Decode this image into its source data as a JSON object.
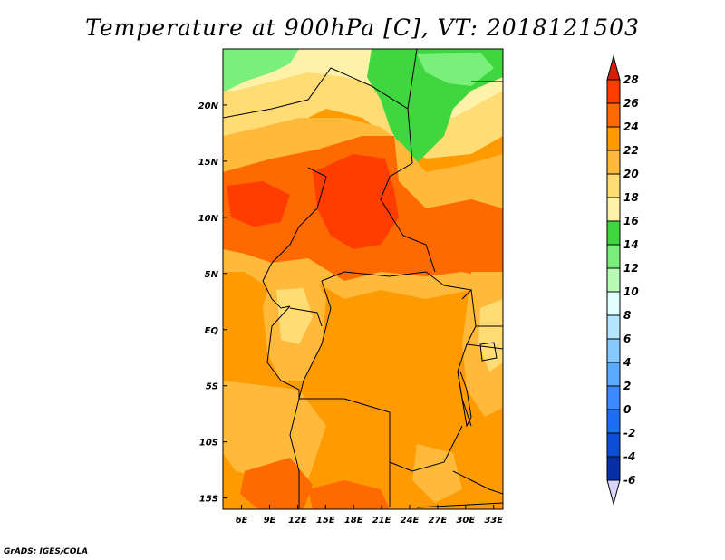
{
  "title": "Temperature at 900hPa [C], VT: 2018121503",
  "credit": "GrADS: IGES/COLA",
  "axes": {
    "lat_labels": [
      "20N",
      "15N",
      "10N",
      "5N",
      "EQ",
      "5S",
      "10S",
      "15S"
    ],
    "lat_values": [
      20,
      15,
      10,
      5,
      0,
      -5,
      -10,
      -15
    ],
    "lon_labels": [
      "6E",
      "9E",
      "12E",
      "15E",
      "18E",
      "21E",
      "24E",
      "27E",
      "30E",
      "33E"
    ],
    "lon_values": [
      6,
      9,
      12,
      15,
      18,
      21,
      24,
      27,
      30,
      33
    ],
    "lon_range": [
      4,
      34
    ],
    "lat_range": [
      -16,
      25
    ]
  },
  "colorbar": {
    "labels": [
      "28",
      "26",
      "24",
      "22",
      "20",
      "18",
      "16",
      "14",
      "12",
      "10",
      "8",
      "6",
      "4",
      "2",
      "0",
      "-2",
      "-4",
      "-6"
    ],
    "colors": [
      "#ff3d00",
      "#ff6a00",
      "#ff9a00",
      "#ffb93b",
      "#ffdc74",
      "#fff2a8",
      "#3fd63f",
      "#7af07a",
      "#b7fbb7",
      "#e2ffff",
      "#b4e6ff",
      "#86c9ff",
      "#5aaaff",
      "#3b8aff",
      "#1e6ef5",
      "#0c4fd5",
      "#062fa8",
      "#0a1470"
    ],
    "top_arrow_color": "#d81e05",
    "bottom_arrow_color": "#d8d4ff"
  },
  "field_colors": {
    "c14": "#3fd63f",
    "c12": "#7af07a",
    "c16": "#fff2a8",
    "c18": "#ffdc74",
    "c20": "#ffb93b",
    "c22": "#ff9a00",
    "c24": "#ff6a00",
    "c26": "#ff3d00"
  }
}
